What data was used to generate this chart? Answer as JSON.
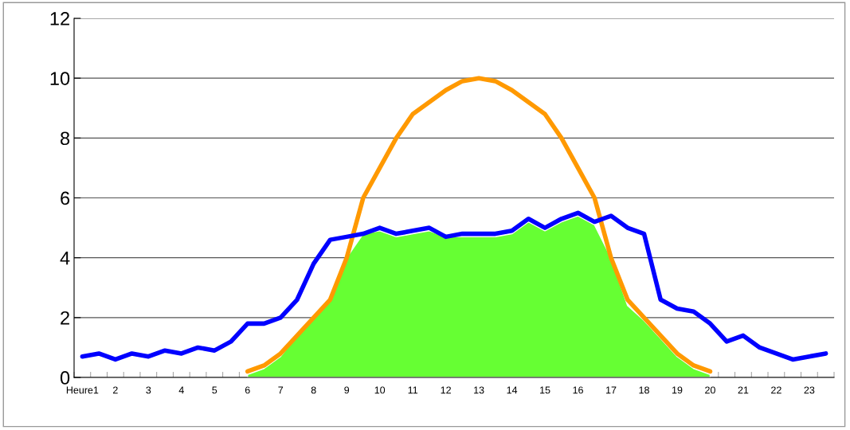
{
  "chart_data": {
    "type": "line",
    "categories": [
      "Heure1",
      null,
      "2",
      null,
      "3",
      null,
      "4",
      null,
      "5",
      null,
      "6",
      null,
      "7",
      null,
      "8",
      null,
      "9",
      null,
      "10",
      null,
      "11",
      null,
      "12",
      null,
      "13",
      null,
      "14",
      null,
      "15",
      null,
      "16",
      null,
      "17",
      null,
      "18",
      null,
      "19",
      null,
      "20",
      null,
      "21",
      null,
      "22",
      null,
      "23",
      null
    ],
    "series": [
      {
        "type": "area",
        "color": "#66ff33",
        "values": [
          null,
          null,
          null,
          null,
          null,
          null,
          null,
          null,
          null,
          null,
          0.1,
          0.3,
          0.7,
          1.4,
          2.0,
          2.6,
          4.0,
          4.8,
          4.9,
          4.7,
          4.8,
          4.9,
          4.7,
          4.7,
          4.7,
          4.7,
          4.8,
          5.2,
          4.9,
          5.2,
          5.4,
          5.1,
          4.0,
          2.4,
          1.9,
          1.3,
          0.7,
          0.3,
          0.1,
          null,
          null,
          null,
          null,
          null,
          null,
          null
        ]
      },
      {
        "color": "#ff9900",
        "values": [
          null,
          null,
          null,
          null,
          null,
          null,
          null,
          null,
          null,
          null,
          0.2,
          0.4,
          0.8,
          1.4,
          2.0,
          2.6,
          4.0,
          6.0,
          7.0,
          8.0,
          8.8,
          9.2,
          9.6,
          9.9,
          10.0,
          9.9,
          9.6,
          9.2,
          8.8,
          8.0,
          7.0,
          6.0,
          4.0,
          2.6,
          2.0,
          1.4,
          0.8,
          0.4,
          0.2,
          null,
          null,
          null,
          null,
          null,
          null,
          null
        ]
      },
      {
        "color": "#0000ff",
        "values": [
          0.7,
          0.8,
          0.6,
          0.8,
          0.7,
          0.9,
          0.8,
          1.0,
          0.9,
          1.2,
          1.8,
          1.8,
          2.0,
          2.6,
          3.8,
          4.6,
          4.7,
          4.8,
          5.0,
          4.8,
          4.9,
          5.0,
          4.7,
          4.8,
          4.8,
          4.8,
          4.9,
          5.3,
          5.0,
          5.3,
          5.5,
          5.2,
          5.4,
          5.0,
          4.8,
          2.6,
          2.3,
          2.2,
          1.8,
          1.2,
          1.4,
          1.0,
          0.8,
          0.6,
          0.7,
          0.8
        ]
      }
    ],
    "ylim": [
      0,
      12
    ],
    "yticks": [
      0,
      2,
      4,
      6,
      8,
      10,
      12
    ],
    "grid": "y",
    "marker": "none",
    "line_style": "solid"
  }
}
